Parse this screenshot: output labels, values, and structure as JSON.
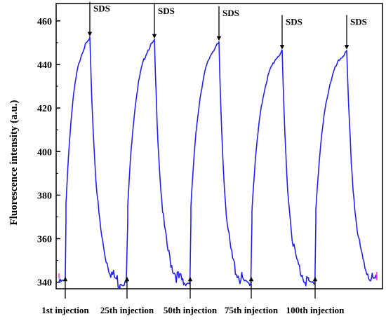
{
  "chart_data": {
    "type": "line",
    "title": "",
    "xlabel": "",
    "ylabel": "Fluorescence intensity (a.u.)",
    "ylim": [
      337,
      468
    ],
    "yticks": [
      340,
      360,
      380,
      400,
      420,
      440,
      460
    ],
    "grid": false,
    "series_color": "#2222ee",
    "cycles": [
      {
        "injection_label": "1st injection",
        "baseline": 340.5,
        "peak": 452,
        "end": 340
      },
      {
        "injection_label": "25th injection",
        "baseline": 340,
        "peak": 451,
        "end": 340
      },
      {
        "injection_label": "50th injection",
        "baseline": 340,
        "peak": 450,
        "end": 340
      },
      {
        "injection_label": "75th injection",
        "baseline": 340,
        "peak": 446,
        "end": 341
      },
      {
        "injection_label": "100th injection",
        "baseline": 340,
        "peak": 446,
        "end": 340
      }
    ],
    "peak_label": "SDS"
  }
}
